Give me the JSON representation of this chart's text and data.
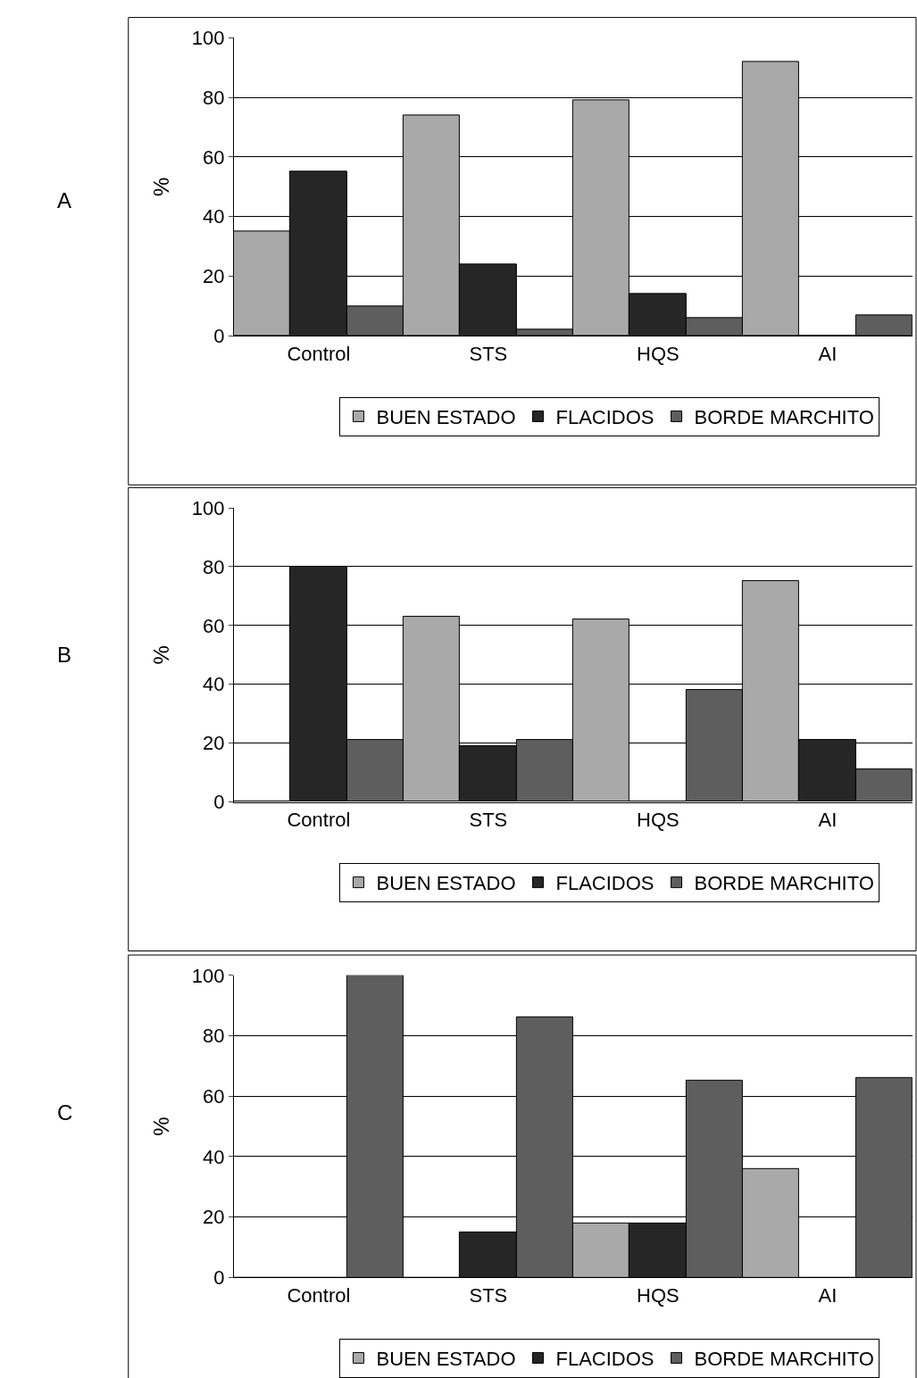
{
  "chart_data": [
    {
      "type": "bar",
      "annotations": [
        "A"
      ],
      "ylabel": "%",
      "categories": [
        "Control",
        "STS",
        "HQS",
        "AI"
      ],
      "ylim": [
        0,
        100
      ],
      "yticks": [
        0,
        20,
        40,
        60,
        80,
        100
      ],
      "grid": "y",
      "legend": "bottom",
      "series": [
        {
          "name": "BUEN ESTADO",
          "color": "#a9a9a9",
          "values": [
            35,
            74,
            79,
            92
          ]
        },
        {
          "name": "FLACIDOS",
          "color": "#262626",
          "values": [
            55,
            24,
            14,
            0
          ]
        },
        {
          "name": "BORDE MARCHITO",
          "color": "#5e5e5e",
          "values": [
            10,
            2,
            6,
            7
          ]
        }
      ]
    },
    {
      "type": "bar",
      "annotations": [
        "B"
      ],
      "ylabel": "%",
      "categories": [
        "Control",
        "STS",
        "HQS",
        "AI"
      ],
      "ylim": [
        0,
        100
      ],
      "yticks": [
        0,
        20,
        40,
        60,
        80,
        100
      ],
      "grid": "y",
      "legend": "bottom",
      "series": [
        {
          "name": "BUEN ESTADO",
          "color": "#a9a9a9",
          "values": [
            0,
            63,
            62,
            75
          ]
        },
        {
          "name": "FLACIDOS",
          "color": "#262626",
          "values": [
            80,
            19,
            0,
            21
          ]
        },
        {
          "name": "BORDE MARCHITO",
          "color": "#5e5e5e",
          "values": [
            21,
            21,
            38,
            11
          ]
        }
      ]
    },
    {
      "type": "bar",
      "annotations": [
        "C"
      ],
      "ylabel": "%",
      "categories": [
        "Control",
        "STS",
        "HQS",
        "AI"
      ],
      "ylim": [
        0,
        100
      ],
      "yticks": [
        0,
        20,
        40,
        60,
        80,
        100
      ],
      "grid": "y",
      "legend": "bottom",
      "series": [
        {
          "name": "BUEN ESTADO",
          "color": "#a9a9a9",
          "values": [
            0,
            0,
            18,
            36
          ]
        },
        {
          "name": "FLACIDOS",
          "color": "#262626",
          "values": [
            0,
            15,
            18,
            0
          ]
        },
        {
          "name": "BORDE MARCHITO",
          "color": "#5e5e5e",
          "values": [
            100,
            86,
            65,
            66
          ]
        }
      ]
    }
  ]
}
